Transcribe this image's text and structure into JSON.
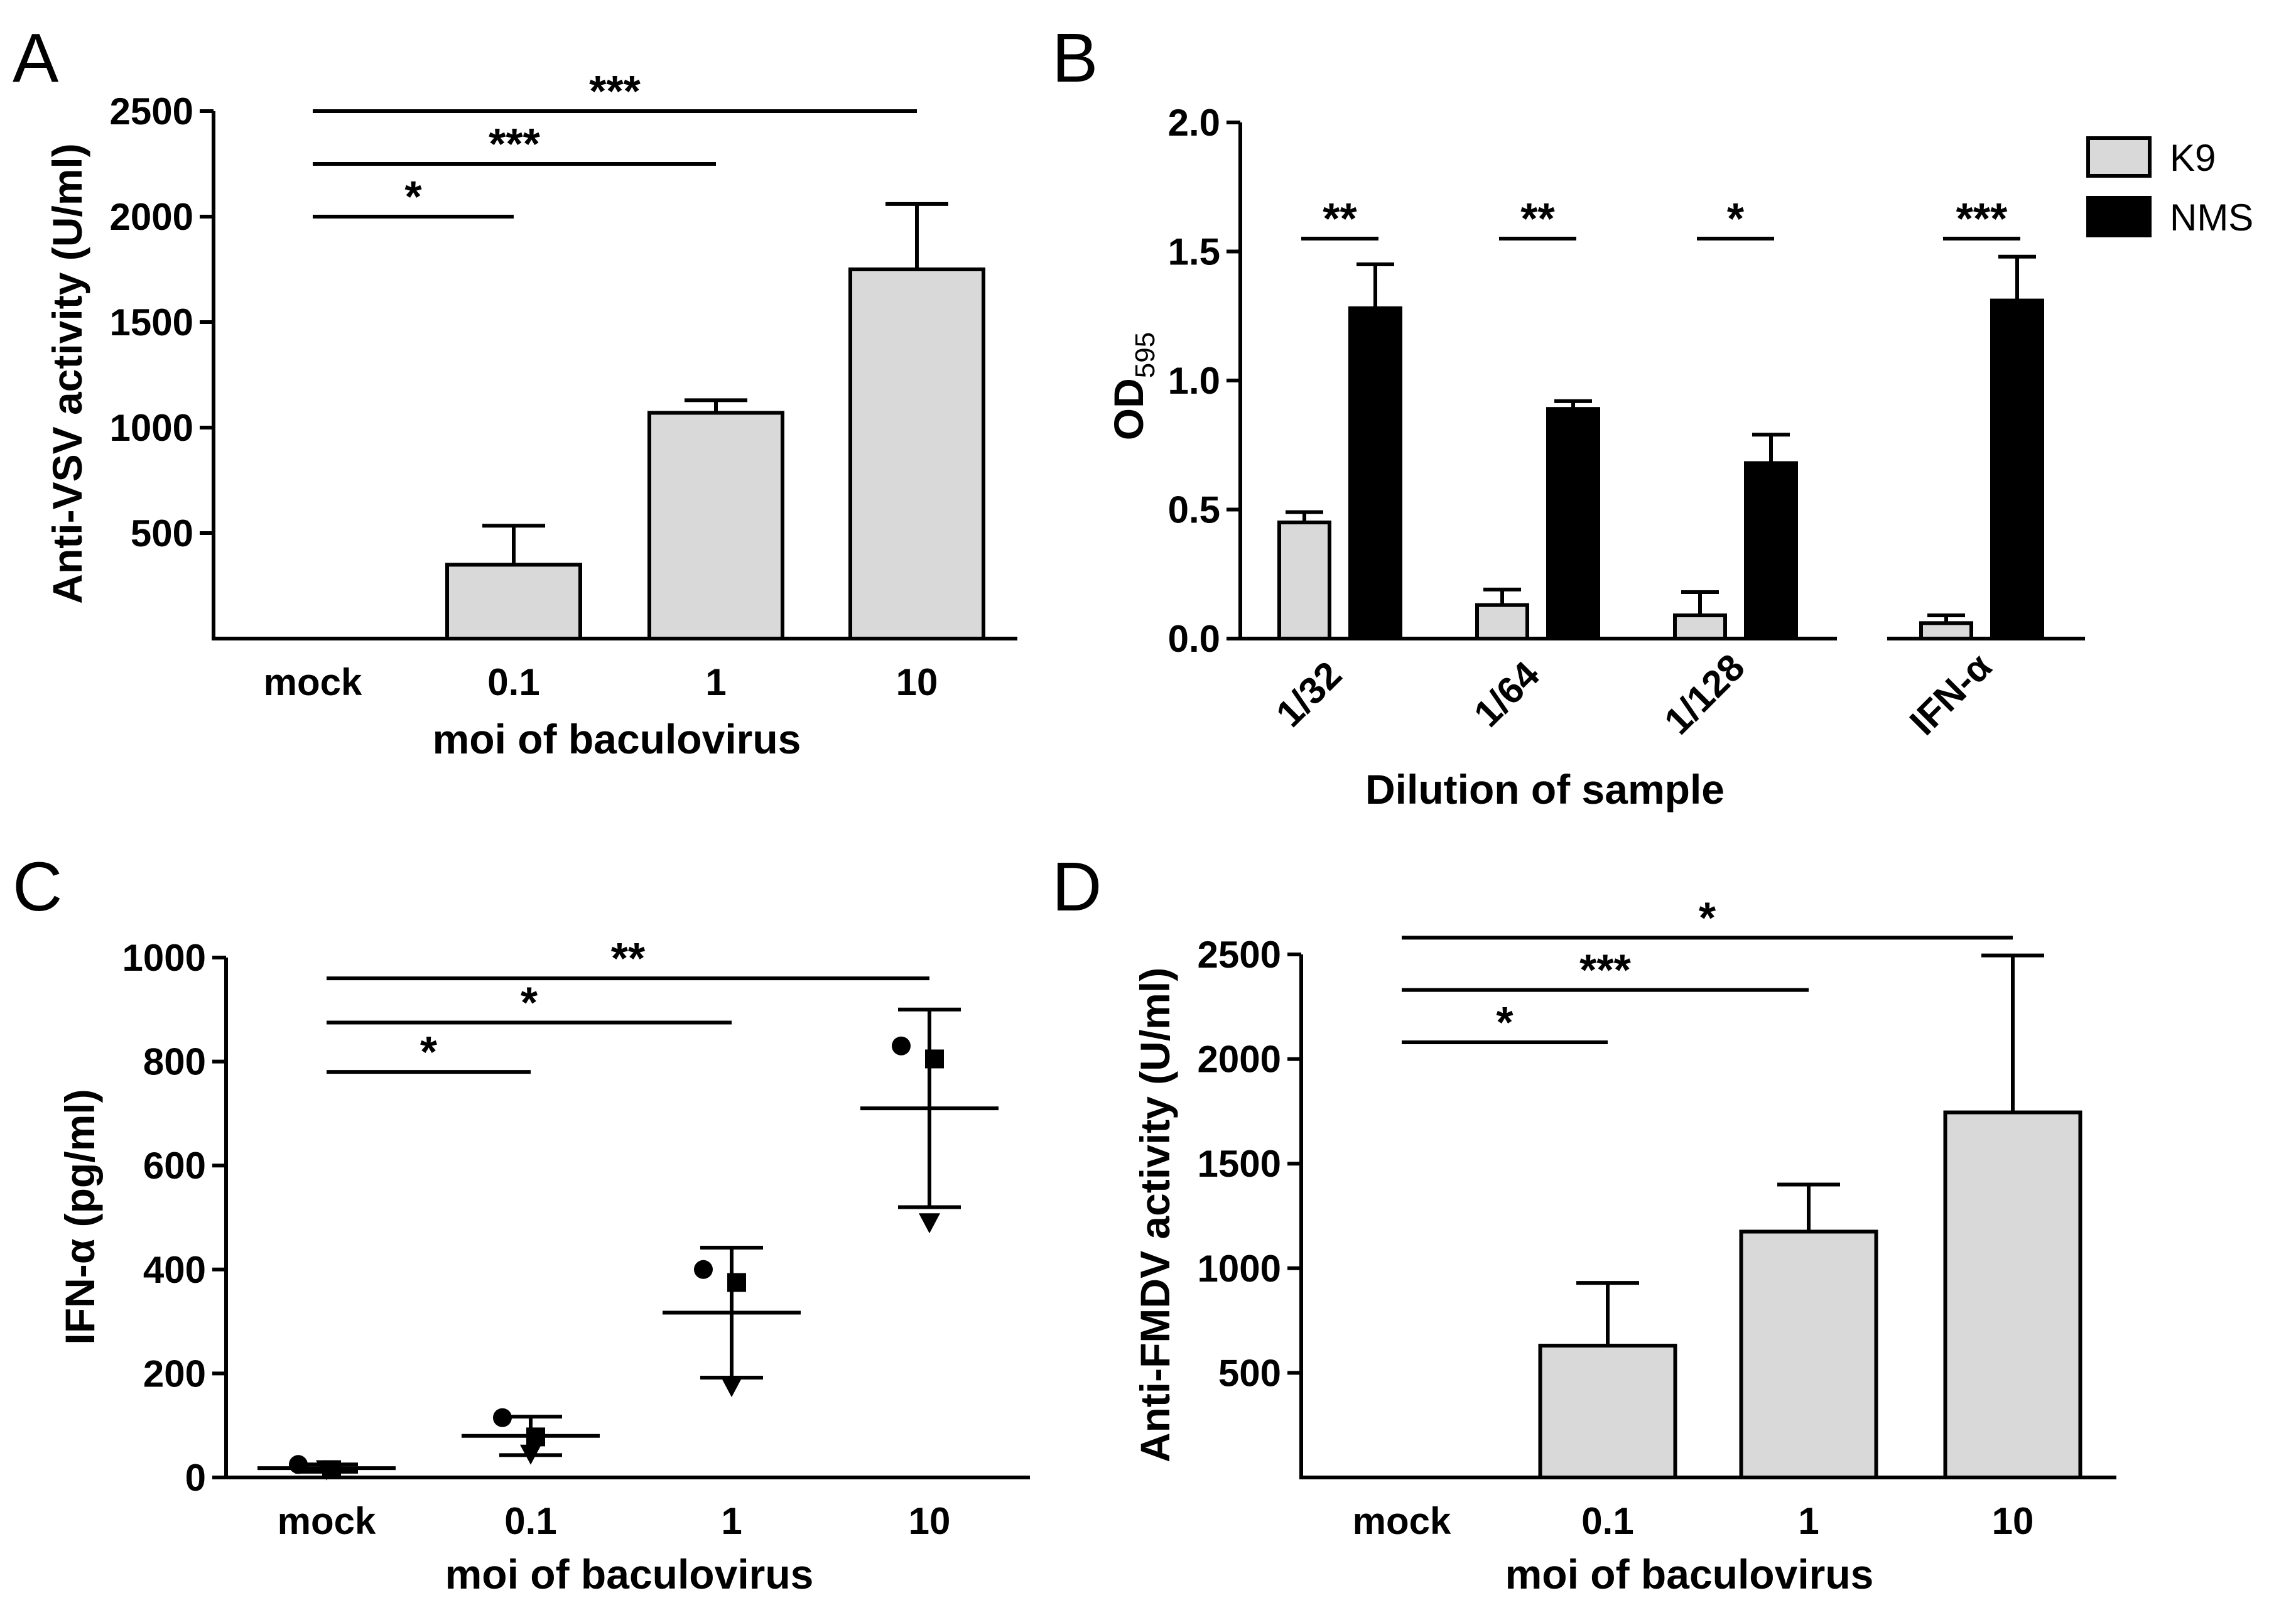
{
  "chart_data": [
    {
      "panel": "A",
      "type": "bar",
      "categories": [
        "mock",
        "0.1",
        "1",
        "10"
      ],
      "values": [
        0,
        350,
        1070,
        1750
      ],
      "errors": [
        0,
        185,
        60,
        310
      ],
      "ylim": [
        0,
        2500
      ],
      "yticks": [
        "500",
        "1000",
        "1500",
        "2000",
        "2500"
      ],
      "xlabel": "moi of baculovirus",
      "ylabel": "Anti-VSV activity (U/ml)",
      "bar_color": "#d9d9d9",
      "significance": [
        {
          "from": "mock",
          "to": "0.1",
          "label": "*",
          "y": 2000
        },
        {
          "from": "mock",
          "to": "1",
          "label": "***",
          "y": 2250
        },
        {
          "from": "mock",
          "to": "10",
          "label": "***",
          "y": 2500
        }
      ]
    },
    {
      "panel": "B",
      "type": "bar",
      "categories": [
        "1/32",
        "1/64",
        "1/128",
        "IFN-α"
      ],
      "series": [
        {
          "name": "K9",
          "color": "#d9d9d9",
          "values": [
            0.45,
            0.13,
            0.09,
            0.06
          ],
          "errors": [
            0.04,
            0.06,
            0.09,
            0.03
          ]
        },
        {
          "name": "NMS",
          "color": "#000000",
          "values": [
            1.28,
            0.89,
            0.68,
            1.31
          ],
          "errors": [
            0.17,
            0.03,
            0.11,
            0.17
          ]
        }
      ],
      "ylim": [
        0,
        2.0
      ],
      "yticks": [
        "0.0",
        "0.5",
        "1.0",
        "1.5",
        "2.0"
      ],
      "xlabel": "Dilution of sample",
      "ylabel": "OD",
      "ylabel_sub": "595",
      "legend_position": "top-right",
      "significance": [
        {
          "category": "1/32",
          "label": "**",
          "y": 1.55
        },
        {
          "category": "1/64",
          "label": "**",
          "y": 1.55
        },
        {
          "category": "1/128",
          "label": "*",
          "y": 1.55
        },
        {
          "category": "IFN-α",
          "label": "***",
          "y": 1.55
        }
      ]
    },
    {
      "panel": "C",
      "type": "scatter",
      "categories": [
        "mock",
        "0.1",
        "1",
        "10"
      ],
      "points": [
        [
          {
            "marker": "circle",
            "y": 25
          },
          {
            "marker": "square",
            "y": 15
          },
          {
            "marker": "triangle",
            "y": 15
          }
        ],
        [
          {
            "marker": "circle",
            "y": 115
          },
          {
            "marker": "square",
            "y": 78
          },
          {
            "marker": "triangle",
            "y": 45
          }
        ],
        [
          {
            "marker": "circle",
            "y": 400
          },
          {
            "marker": "square",
            "y": 375
          },
          {
            "marker": "triangle",
            "y": 175
          }
        ],
        [
          {
            "marker": "circle",
            "y": 830
          },
          {
            "marker": "square",
            "y": 805
          },
          {
            "marker": "triangle",
            "y": 490
          }
        ]
      ],
      "means": [
        18,
        80,
        317,
        710
      ],
      "sd": [
        7,
        37,
        125,
        190
      ],
      "ylim": [
        0,
        1000
      ],
      "yticks": [
        "0",
        "200",
        "400",
        "600",
        "800",
        "1000"
      ],
      "xlabel": "moi of baculovirus",
      "ylabel": "IFN-α (pg/ml)",
      "significance": [
        {
          "from": "mock",
          "to": "0.1",
          "label": "*",
          "y": 780
        },
        {
          "from": "mock",
          "to": "1",
          "label": "*",
          "y": 875
        },
        {
          "from": "mock",
          "to": "10",
          "label": "**",
          "y": 960
        }
      ]
    },
    {
      "panel": "D",
      "type": "bar",
      "categories": [
        "mock",
        "0.1",
        "1",
        "10"
      ],
      "values": [
        0,
        630,
        1175,
        1745
      ],
      "errors": [
        0,
        300,
        225,
        750
      ],
      "ylim": [
        0,
        2500
      ],
      "yticks": [
        "500",
        "1000",
        "1500",
        "2000",
        "2500"
      ],
      "xlabel": "moi of baculovirus",
      "ylabel": "Anti-FMDV activity (U/ml)",
      "bar_color": "#d9d9d9",
      "significance": [
        {
          "from": "mock",
          "to": "0.1",
          "label": "*",
          "y": 2080
        },
        {
          "from": "mock",
          "to": "1",
          "label": "***",
          "y": 2330
        },
        {
          "from": "mock",
          "to": "10",
          "label": "*",
          "y": 2580
        }
      ]
    }
  ]
}
